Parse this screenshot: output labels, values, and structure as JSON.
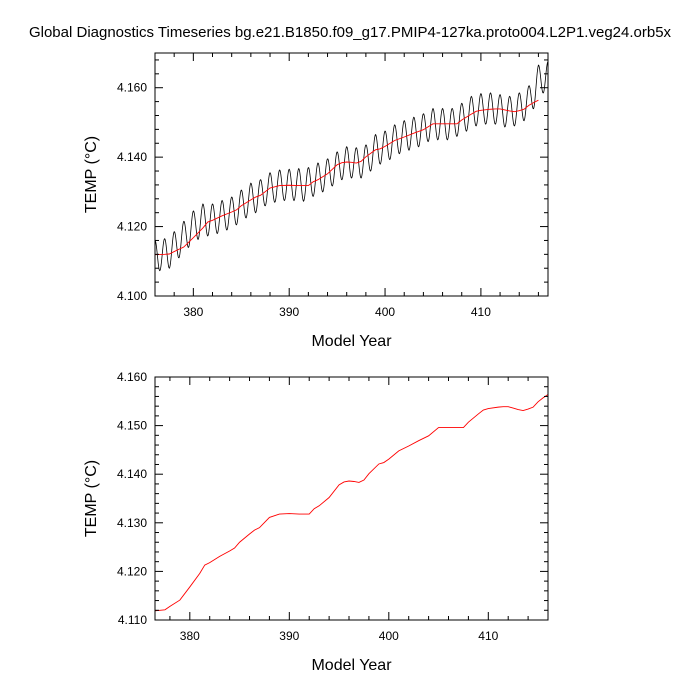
{
  "title": "Global Diagnostics Timeseries bg.e21.B1850.f09_g17.PMIP4-127ka.proto004.L2P1.veg24.orb5x",
  "colors": {
    "raw_series": "#000000",
    "smoothed_series": "#ff0000",
    "axes": "#000000"
  },
  "chart_data": [
    {
      "type": "line",
      "xlabel": "Model Year",
      "ylabel": "TEMP (°C)",
      "xlim": [
        376,
        417
      ],
      "ylim": [
        4.1,
        4.17
      ],
      "xticks": [
        380,
        390,
        400,
        410
      ],
      "xtick_labels": [
        "380",
        "390",
        "400",
        "410"
      ],
      "yticks": [
        4.1,
        4.12,
        4.14,
        4.16
      ],
      "ytick_labels": [
        "4.100",
        "4.120",
        "4.140",
        "4.160"
      ],
      "grid": false,
      "series": [
        {
          "role": "monthly",
          "color": "#000000",
          "seasonal_amplitude": 0.0045,
          "x": [
            376,
            376.5,
            377,
            377.5,
            378,
            378.5,
            379,
            379.5,
            380,
            380.5,
            381,
            381.5,
            382,
            382.5,
            383,
            383.5,
            384,
            384.5,
            385,
            385.5,
            386,
            386.5,
            387,
            387.5,
            388,
            388.5,
            389,
            389.5,
            390,
            390.5,
            391,
            391.5,
            392,
            392.5,
            393,
            393.5,
            394,
            394.5,
            395,
            395.5,
            396,
            396.5,
            397,
            397.5,
            398,
            398.5,
            399,
            399.5,
            400,
            400.5,
            401,
            401.5,
            402,
            402.5,
            403,
            403.5,
            404,
            404.5,
            405,
            405.5,
            406,
            406.5,
            407,
            407.5,
            408,
            408.5,
            409,
            409.5,
            410,
            410.5,
            411,
            411.5,
            412,
            412.5,
            413,
            413.5,
            414,
            414.5,
            415,
            415.5,
            416,
            416.5,
            417
          ],
          "y": [
            4.1115,
            4.1118,
            4.112,
            4.1125,
            4.114,
            4.1155,
            4.117,
            4.1185,
            4.12,
            4.1208,
            4.122,
            4.1218,
            4.122,
            4.1225,
            4.123,
            4.1235,
            4.124,
            4.125,
            4.126,
            4.127,
            4.128,
            4.1285,
            4.129,
            4.1305,
            4.131,
            4.1315,
            4.1318,
            4.132,
            4.132,
            4.132,
            4.1322,
            4.1318,
            4.1325,
            4.1332,
            4.1338,
            4.1345,
            4.135,
            4.1362,
            4.137,
            4.138,
            4.1385,
            4.1385,
            4.1382,
            4.1385,
            4.139,
            4.1405,
            4.142,
            4.1425,
            4.143,
            4.1438,
            4.1448,
            4.1455,
            4.146,
            4.1465,
            4.147,
            4.1475,
            4.148,
            4.149,
            4.1495,
            4.1495,
            4.1495,
            4.1495,
            4.1495,
            4.1505,
            4.151,
            4.152,
            4.153,
            4.1535,
            4.1538,
            4.154,
            4.154,
            4.154,
            4.1535,
            4.1532,
            4.153,
            4.1535,
            4.154,
            4.155,
            4.156,
            4.1585,
            4.162,
            4.163,
            4.163
          ]
        },
        {
          "role": "smoothed",
          "color": "#ff0000",
          "x": [
            376,
            377,
            377.5,
            378,
            379,
            380,
            381,
            381.5,
            382,
            383,
            384,
            384.5,
            385,
            386,
            386.5,
            387,
            388,
            389,
            390,
            391,
            392,
            392.5,
            393,
            394,
            395,
            395.5,
            396,
            396.5,
            397,
            397.5,
            398,
            399,
            399.5,
            400,
            401,
            402,
            403,
            404,
            405,
            405.5,
            406,
            407,
            407.5,
            408,
            409,
            409.5,
            410,
            411,
            411.5,
            412,
            412.5,
            413,
            413.5,
            414,
            414.5,
            415,
            415.5,
            416
          ],
          "y": [
            4.1119,
            4.112,
            4.1121,
            4.1128,
            4.1141,
            4.1168,
            4.1196,
            4.1213,
            4.1218,
            4.1231,
            4.1242,
            4.1248,
            4.126,
            4.1277,
            4.1285,
            4.129,
            4.1311,
            4.1318,
            4.1319,
            4.1318,
            4.1318,
            4.1329,
            4.1335,
            4.1352,
            4.1378,
            4.1384,
            4.1386,
            4.1385,
            4.1383,
            4.1388,
            4.1401,
            4.1421,
            4.1424,
            4.1431,
            4.1448,
            4.1458,
            4.1469,
            4.1479,
            4.1496,
            4.1496,
            4.1496,
            4.1496,
            4.1496,
            4.1507,
            4.1524,
            4.1532,
            4.1535,
            4.1538,
            4.1539,
            4.1539,
            4.1536,
            4.1533,
            4.1531,
            4.1534,
            4.1538,
            4.1549,
            4.1557,
            4.1564
          ]
        }
      ]
    },
    {
      "type": "line",
      "xlabel": "Model Year",
      "ylabel": "TEMP (°C)",
      "xlim": [
        376.5,
        416
      ],
      "ylim": [
        4.11,
        4.16
      ],
      "xticks": [
        380,
        390,
        400,
        410
      ],
      "xtick_labels": [
        "380",
        "390",
        "400",
        "410"
      ],
      "yticks": [
        4.11,
        4.12,
        4.13,
        4.14,
        4.15,
        4.16
      ],
      "ytick_labels": [
        "4.110",
        "4.120",
        "4.130",
        "4.140",
        "4.150",
        "4.160"
      ],
      "grid": false,
      "series": [
        {
          "role": "smoothed",
          "color": "#ff0000",
          "x": [
            376.5,
            377,
            377.5,
            378,
            379,
            380,
            381,
            381.5,
            382,
            383,
            384,
            384.5,
            385,
            386,
            386.5,
            387,
            388,
            389,
            390,
            391,
            392,
            392.5,
            393,
            394,
            395,
            395.5,
            396,
            396.5,
            397,
            397.5,
            398,
            399,
            399.5,
            400,
            401,
            402,
            403,
            404,
            405,
            405.5,
            406,
            407,
            407.5,
            408,
            409,
            409.5,
            410,
            411,
            411.5,
            412,
            412.5,
            413,
            413.5,
            414,
            414.5,
            415,
            415.5,
            416
          ],
          "y": [
            4.1119,
            4.112,
            4.1121,
            4.1128,
            4.1141,
            4.1168,
            4.1196,
            4.1213,
            4.1218,
            4.1231,
            4.1242,
            4.1248,
            4.126,
            4.1277,
            4.1285,
            4.129,
            4.1311,
            4.1318,
            4.1319,
            4.1318,
            4.1318,
            4.1329,
            4.1335,
            4.1352,
            4.1378,
            4.1384,
            4.1386,
            4.1385,
            4.1383,
            4.1388,
            4.1401,
            4.1421,
            4.1424,
            4.1431,
            4.1448,
            4.1458,
            4.1469,
            4.1479,
            4.1496,
            4.1496,
            4.1496,
            4.1496,
            4.1496,
            4.1507,
            4.1524,
            4.1532,
            4.1535,
            4.1538,
            4.1539,
            4.1539,
            4.1536,
            4.1533,
            4.1531,
            4.1534,
            4.1538,
            4.1549,
            4.1557,
            4.1564
          ]
        }
      ]
    }
  ]
}
